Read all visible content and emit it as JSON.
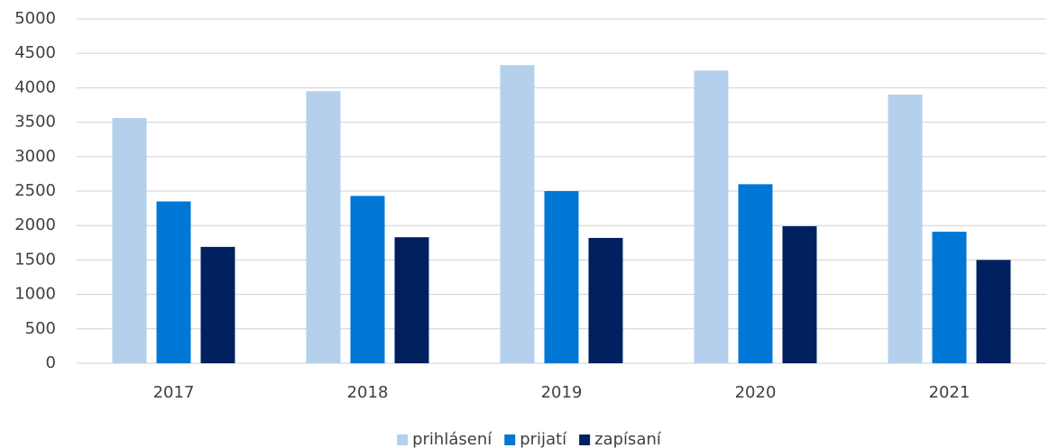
{
  "chart_data": {
    "type": "bar",
    "categories": [
      "2017",
      "2018",
      "2019",
      "2020",
      "2021"
    ],
    "series": [
      {
        "name": "prihlásení",
        "color": "#b4d0ec",
        "values": [
          3560,
          3950,
          4330,
          4250,
          3900
        ]
      },
      {
        "name": "prijatí",
        "color": "#0077d4",
        "values": [
          2350,
          2430,
          2500,
          2600,
          1910
        ]
      },
      {
        "name": "zapísaní",
        "color": "#002060",
        "values": [
          1690,
          1830,
          1820,
          1990,
          1500
        ]
      }
    ],
    "ylim": [
      0,
      5000
    ],
    "yticks": [
      0,
      500,
      1000,
      1500,
      2000,
      2500,
      3000,
      3500,
      4000,
      4500,
      5000
    ],
    "grid": true,
    "legend": "bottom"
  }
}
